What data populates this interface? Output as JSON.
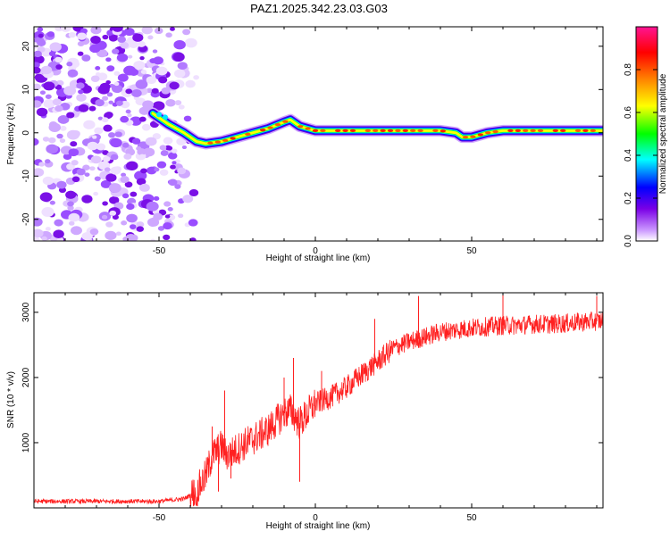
{
  "title": "PAZ1.2025.342.23.03.G03",
  "chart_data": [
    {
      "type": "heatmap",
      "xlabel": "Height of straight line (km)",
      "ylabel": "Frequency (Hz)",
      "xlim": [
        -90,
        92
      ],
      "ylim": [
        -25,
        24.5
      ],
      "xticks": [
        -50,
        0,
        50
      ],
      "xtick_labels": [
        "-50",
        "0",
        "50"
      ],
      "yticks": [
        20,
        10,
        0,
        -10,
        -20
      ],
      "ytick_labels": [
        "20",
        "10",
        "0",
        "-10",
        "-20"
      ],
      "colorbar": {
        "label": "Normalized spectral amplitude",
        "range": [
          0,
          1
        ],
        "ticks": [
          0.0,
          0.2,
          0.4,
          0.6,
          0.8
        ],
        "tick_labels": [
          "0.0",
          "0.2",
          "0.4",
          "0.6",
          "0.8"
        ],
        "colormap": [
          "#ffffff",
          "#cc99ff",
          "#7a00e6",
          "#0000ff",
          "#00ffff",
          "#00ff00",
          "#ffff00",
          "#ff8800",
          "#ff0000",
          "#ff1493"
        ]
      },
      "signal_track": {
        "x": [
          -52,
          -47,
          -42,
          -38,
          -35,
          -30,
          -25,
          -20,
          -15,
          -10,
          -8,
          -5,
          0,
          10,
          20,
          30,
          40,
          45,
          47,
          50,
          55,
          60,
          70,
          80,
          92
        ],
        "y": [
          4.5,
          2,
          0,
          -2,
          -2.5,
          -2,
          -1,
          0,
          1,
          2.5,
          3,
          1.5,
          0.5,
          0.5,
          0.5,
          0.5,
          0.5,
          0,
          -1,
          -1,
          0,
          0.5,
          0.5,
          0.5,
          0.5
        ]
      },
      "noise_region_x": [
        -90,
        -38
      ]
    },
    {
      "type": "line",
      "xlabel": "Height of straight line (km)",
      "ylabel": "SNR (10 * v/v)",
      "xlim": [
        -90,
        92
      ],
      "ylim": [
        0,
        3300
      ],
      "xticks": [
        -50,
        0,
        50
      ],
      "xtick_labels": [
        "-50",
        "0",
        "50"
      ],
      "yticks": [
        1000,
        2000,
        3000
      ],
      "ytick_labels": [
        "1000",
        "2000",
        "3000"
      ],
      "color": "#ff2020",
      "envelope_x": [
        -90,
        -50,
        -42,
        -38,
        -35,
        -33,
        -30,
        -28,
        -25,
        -22,
        -20,
        -15,
        -10,
        -8,
        -5,
        0,
        5,
        10,
        15,
        20,
        25,
        30,
        35,
        40,
        45,
        50,
        55,
        60,
        65,
        70,
        75,
        80,
        85,
        92
      ],
      "envelope_y": [
        100,
        100,
        140,
        250,
        500,
        800,
        950,
        800,
        900,
        1000,
        1050,
        1200,
        1450,
        1500,
        1300,
        1600,
        1700,
        1850,
        2050,
        2250,
        2450,
        2550,
        2620,
        2700,
        2730,
        2760,
        2780,
        2800,
        2800,
        2820,
        2820,
        2830,
        2850,
        2870
      ],
      "spikes": [
        {
          "x": -33,
          "y": 1250
        },
        {
          "x": -29,
          "y": 1800
        },
        {
          "x": -31,
          "y": 250
        },
        {
          "x": -27,
          "y": 450
        },
        {
          "x": -10,
          "y": 2000
        },
        {
          "x": -7,
          "y": 2300
        },
        {
          "x": -5,
          "y": 400
        },
        {
          "x": 2,
          "y": 2100
        },
        {
          "x": 19,
          "y": 2900
        },
        {
          "x": 33,
          "y": 3250
        },
        {
          "x": 60,
          "y": 3300
        },
        {
          "x": 90,
          "y": 3250
        }
      ]
    }
  ]
}
